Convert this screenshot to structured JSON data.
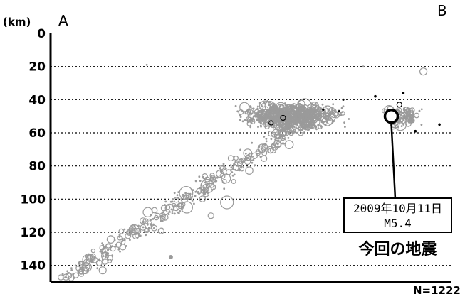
{
  "chart_data": {
    "type": "scatter",
    "title": "",
    "xlabel": "",
    "ylabel": "(km)",
    "section_start_label": "A",
    "section_end_label": "B",
    "ylim": [
      0,
      150
    ],
    "y_inverted": true,
    "yticks": [
      0,
      20,
      40,
      60,
      80,
      100,
      120,
      140
    ],
    "grid": "dashed-horizontal",
    "count_label": "N=1222",
    "highlight": {
      "line1": "2009年10月11日",
      "line2": "M5.4",
      "title": "今回の地震",
      "depth_km": 50,
      "x_fraction": 0.85
    },
    "colors": {
      "hypocenter": "#9a9a9a",
      "highlight": "#000000",
      "black_event": "#000000"
    }
  }
}
